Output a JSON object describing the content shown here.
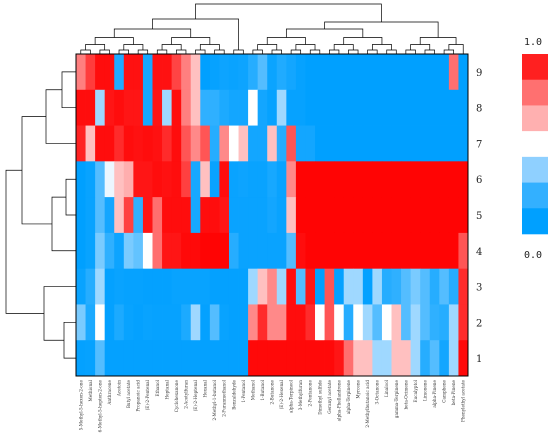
{
  "chart_data": {
    "type": "heatmap",
    "title": "",
    "xlabel": "",
    "ylabel": "",
    "colorscale": {
      "min_label": "0.0",
      "max_label": "1.0",
      "colors": [
        "#00a0ff",
        "#33b0ff",
        "#8fd0ff",
        "#ffffff",
        "#ffb0b0",
        "#ff7070",
        "#ff2020"
      ]
    },
    "row_labels": [
      "9",
      "8",
      "7",
      "6",
      "5",
      "4",
      "3",
      "2",
      "1"
    ],
    "column_labels": [
      "5-Methyl-5-hexen-2-one",
      "Methional",
      "6-Methyl-5-hepten-2-one",
      "Anthracene",
      "Acetoin",
      "Butyl acetate",
      "Propanoic acid",
      "(E)-2-Pentenal",
      "Ethanol",
      "Heptanal",
      "Cyclohexanone",
      "2-Acetylfuran",
      "(E)-2-Heptenal",
      "Hexanal",
      "2-Methyl-1-butanol",
      "2-Furanmethanol",
      "Benzaldehyde",
      "1-Pentanol",
      "Methanol",
      "1-Butanol",
      "2-Butanone",
      "(E)-2-Hexenal",
      "alpha-Terpineol",
      "3-Methylfuran",
      "2-Pentanone",
      "Dimethyl sulfide",
      "Geranyl acetate",
      "alpha-Phellandrene",
      "alpha-Terpinene",
      "Myrcene",
      "2-Methylbutanoic acid",
      "3-Octanone",
      "Linalool",
      "gamma-Terpinene",
      "beta-Ocimene",
      "Eucalyptol",
      "Limonene",
      "alpha-Pinene",
      "Camphene",
      "beta-Pinene",
      "Phenylethyl acetate"
    ],
    "values": [
      [
        0.72,
        0.86,
        0.97,
        0.97,
        0.17,
        0.96,
        0.96,
        0.13,
        0.96,
        0.96,
        0.84,
        0.72,
        0.6,
        0.0,
        0.03,
        0.07,
        0.05,
        0.07,
        0.2,
        0.3,
        0.06,
        0.17,
        0.1,
        0.03,
        0.0,
        0.0,
        0.0,
        0.0,
        0.0,
        0.0,
        0.0,
        0.0,
        0.0,
        0.0,
        0.0,
        0.0,
        0.0,
        0.0,
        0.0,
        0.75,
        0.0
      ],
      [
        0.97,
        0.97,
        0.4,
        0.95,
        0.97,
        0.95,
        0.95,
        0.12,
        0.95,
        0.4,
        0.97,
        0.72,
        0.6,
        0.25,
        0.25,
        0.15,
        0.1,
        0.1,
        0.5,
        0.1,
        0.03,
        0.4,
        0.03,
        0.03,
        0.0,
        0.0,
        0.0,
        0.0,
        0.0,
        0.0,
        0.0,
        0.0,
        0.0,
        0.0,
        0.0,
        0.0,
        0.0,
        0.0,
        0.0,
        0.0,
        0.0
      ],
      [
        0.92,
        0.6,
        0.97,
        0.97,
        0.9,
        0.97,
        0.96,
        0.97,
        0.96,
        0.9,
        0.97,
        0.8,
        0.7,
        0.8,
        0.2,
        0.7,
        0.5,
        0.6,
        0.1,
        0.1,
        0.6,
        0.2,
        0.8,
        0.1,
        0.1,
        0.0,
        0.0,
        0.0,
        0.0,
        0.0,
        0.0,
        0.0,
        0.0,
        0.0,
        0.0,
        0.0,
        0.0,
        0.0,
        0.0,
        0.0,
        0.0
      ],
      [
        0.0,
        0.04,
        0.3,
        0.48,
        0.6,
        0.63,
        0.95,
        0.95,
        0.97,
        0.96,
        0.97,
        0.85,
        0.12,
        0.6,
        0.05,
        0.97,
        0.05,
        0.07,
        0.05,
        0.05,
        0.12,
        0.05,
        0.7,
        0.99,
        0.99,
        0.99,
        0.99,
        0.99,
        0.99,
        0.99,
        0.99,
        0.99,
        0.99,
        0.99,
        0.99,
        0.99,
        0.99,
        0.99,
        0.99,
        0.99,
        0.99
      ],
      [
        0.0,
        0.04,
        0.3,
        0.1,
        0.6,
        0.85,
        0.25,
        0.95,
        0.75,
        0.97,
        0.97,
        0.97,
        0.12,
        0.97,
        0.97,
        0.95,
        0.05,
        0.05,
        0.05,
        0.05,
        0.1,
        0.05,
        0.6,
        0.99,
        0.99,
        0.99,
        0.99,
        0.99,
        0.99,
        0.99,
        0.99,
        0.99,
        0.99,
        0.99,
        0.99,
        0.99,
        0.99,
        0.99,
        0.99,
        0.99,
        0.99
      ],
      [
        0.0,
        0.04,
        0.35,
        0.25,
        0.07,
        0.35,
        0.32,
        0.5,
        0.75,
        0.95,
        0.95,
        0.98,
        0.98,
        0.99,
        0.99,
        0.99,
        0.2,
        0.05,
        0.05,
        0.05,
        0.05,
        0.05,
        0.3,
        0.97,
        0.99,
        0.99,
        0.99,
        0.99,
        0.99,
        0.99,
        0.99,
        0.99,
        0.99,
        0.99,
        0.99,
        0.99,
        0.99,
        0.99,
        0.99,
        0.99,
        0.8
      ],
      [
        0.05,
        0.2,
        0.4,
        0.02,
        0.05,
        0.03,
        0.03,
        0.02,
        0.02,
        0.02,
        0.04,
        0.04,
        0.04,
        0.04,
        0.02,
        0.02,
        0.02,
        0.02,
        0.4,
        0.6,
        0.7,
        0.4,
        0.97,
        0.3,
        0.95,
        0.0,
        0.8,
        0.02,
        0.4,
        0.4,
        0.02,
        0.4,
        0.2,
        0.25,
        0.3,
        0.35,
        0.3,
        0.2,
        0.3,
        0.2,
        0.9
      ],
      [
        0.35,
        0.15,
        0.5,
        0.02,
        0.15,
        0.04,
        0.02,
        0.04,
        0.03,
        0.03,
        0.03,
        0.15,
        0.4,
        0.02,
        0.3,
        0.04,
        0.02,
        0.02,
        0.7,
        0.9,
        0.7,
        0.7,
        0.97,
        0.97,
        0.9,
        0.5,
        0.8,
        0.5,
        0.2,
        0.5,
        0.4,
        0.3,
        0.5,
        0.6,
        0.3,
        0.4,
        0.3,
        0.25,
        0.2,
        0.4,
        0.9
      ],
      [
        0.02,
        0.03,
        0.3,
        0.02,
        0.02,
        0.02,
        0.02,
        0.02,
        0.02,
        0.02,
        0.02,
        0.02,
        0.02,
        0.02,
        0.02,
        0.02,
        0.02,
        0.02,
        0.98,
        0.98,
        0.98,
        0.98,
        0.98,
        0.98,
        0.98,
        0.98,
        0.98,
        0.95,
        0.75,
        0.6,
        0.6,
        0.4,
        0.4,
        0.6,
        0.6,
        0.4,
        0.2,
        0.3,
        0.1,
        0.4,
        0.98
      ]
    ],
    "dendrograms": {
      "rows": true,
      "columns": true
    }
  }
}
